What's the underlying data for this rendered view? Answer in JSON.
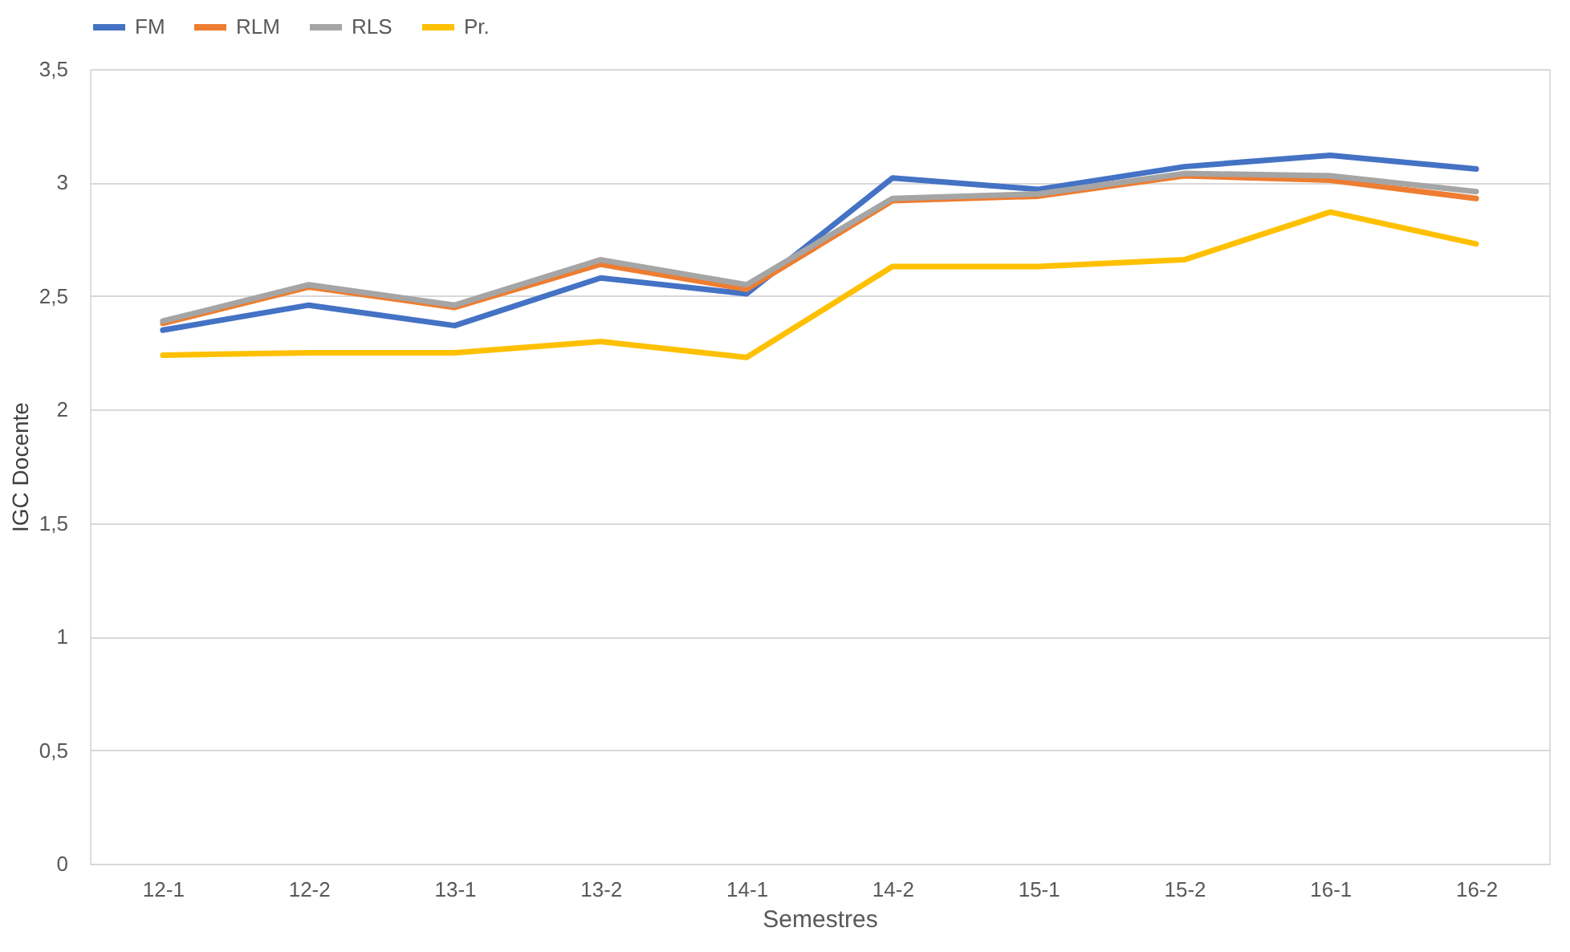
{
  "chart_data": {
    "type": "line",
    "xlabel": "Semestres",
    "ylabel": "IGC Docente",
    "categories": [
      "12-1",
      "12-2",
      "13-1",
      "13-2",
      "14-1",
      "14-2",
      "15-1",
      "15-2",
      "16-1",
      "16-2"
    ],
    "series": [
      {
        "name": "FM",
        "color": "#4472c4",
        "values": [
          2.35,
          2.46,
          2.37,
          2.58,
          2.51,
          3.02,
          2.97,
          3.07,
          3.12,
          3.06
        ]
      },
      {
        "name": "RLM",
        "color": "#ed7d31",
        "values": [
          2.38,
          2.54,
          2.45,
          2.64,
          2.53,
          2.92,
          2.94,
          3.03,
          3.01,
          2.93
        ]
      },
      {
        "name": "RLS",
        "color": "#a5a5a5",
        "values": [
          2.39,
          2.55,
          2.46,
          2.66,
          2.55,
          2.93,
          2.95,
          3.04,
          3.03,
          2.96
        ]
      },
      {
        "name": "Pr.",
        "color": "#ffc000",
        "values": [
          2.24,
          2.25,
          2.25,
          2.3,
          2.23,
          2.63,
          2.63,
          2.66,
          2.87,
          2.73
        ]
      }
    ],
    "ylim": [
      0,
      3.5
    ],
    "yticks": [
      0,
      {
        "value": 0.5,
        "label": "0,5"
      },
      1,
      {
        "value": 1.5,
        "label": "1,5"
      },
      2,
      {
        "value": 2.5,
        "label": "2,5"
      },
      3,
      {
        "value": 3.5,
        "label": "3,5"
      }
    ],
    "grid": "y",
    "legend": "top",
    "marker": "none",
    "line_style": "solid"
  }
}
